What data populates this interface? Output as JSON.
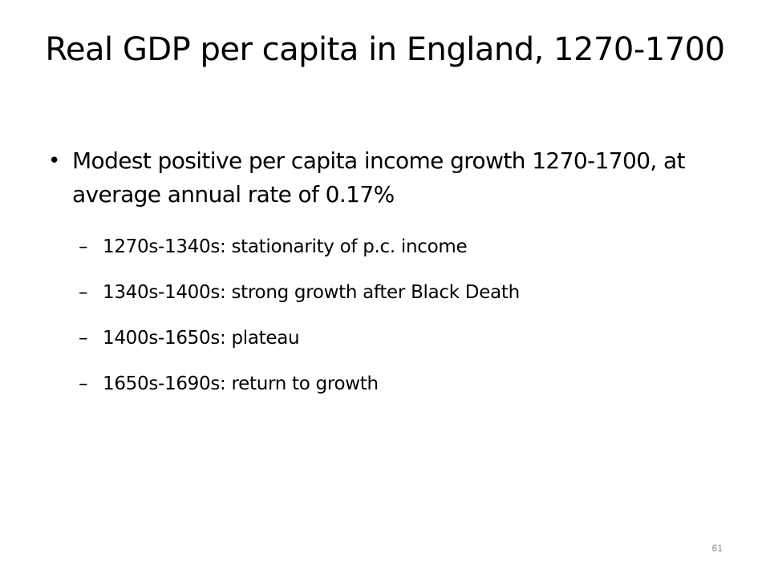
{
  "slide": {
    "title": "Real GDP per capita in England, 1270-1700",
    "bullet": {
      "marker": "•",
      "text": "Modest positive per capita income growth 1270-1700, at average annual rate of 0.17%"
    },
    "sub_bullets": [
      {
        "marker": "–",
        "text": "1270s-1340s: stationarity of p.c. income"
      },
      {
        "marker": "–",
        "text": "1340s-1400s: strong growth after Black Death"
      },
      {
        "marker": "–",
        "text": "1400s-1650s: plateau"
      },
      {
        "marker": "–",
        "text": "1650s-1690s: return to growth"
      }
    ],
    "page_number": "61"
  }
}
